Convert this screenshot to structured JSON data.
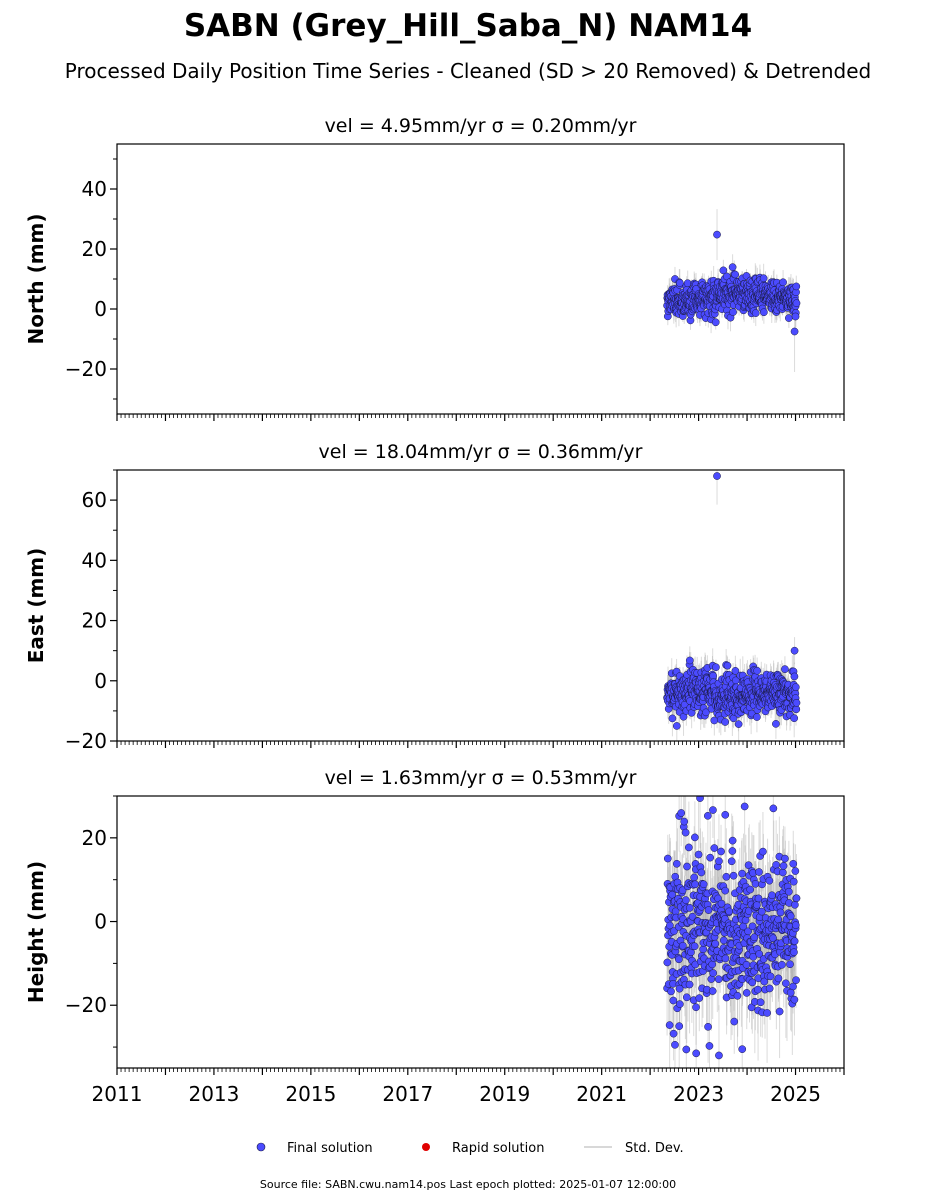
{
  "title": "SABN (Grey_Hill_Saba_N) NAM14",
  "subtitle": "Processed Daily Position Time Series - Cleaned (SD > 20 Removed) & Detrended",
  "footer": "Source file: SABN.cwu.nam14.pos  Last epoch plotted: 2025-01-07 12:00:00",
  "legend": [
    {
      "label": "Final solution",
      "color": "#4b4bff",
      "kind": "dot"
    },
    {
      "label": "Rapid solution",
      "color": "#e00000",
      "kind": "dot"
    },
    {
      "label": "Std. Dev.",
      "color": "#cccccc",
      "kind": "line"
    }
  ],
  "colors": {
    "final": "#4b4bff",
    "final_edge": "#1a1a40",
    "rapid": "#e00000",
    "stddev": "#b0b0b0"
  },
  "chart_data": [
    {
      "type": "scatter",
      "panel_title": "vel = 4.95mm/yr   σ = 0.20mm/yr",
      "ylabel": "North (mm)",
      "xlim": [
        2011.0,
        2026.0
      ],
      "ylim": [
        -35,
        55
      ],
      "yticks": [
        -20,
        0,
        20,
        40
      ],
      "ytick_labels": [
        "−20",
        "0",
        "20",
        "40"
      ],
      "show_xticklabels": false,
      "data_start": 2022.35,
      "data_end": 2025.02,
      "baseline": [
        [
          2022.35,
          3.0
        ],
        [
          2023.0,
          3.5
        ],
        [
          2023.8,
          5.5
        ],
        [
          2024.4,
          4.5
        ],
        [
          2025.02,
          3.0
        ]
      ],
      "noise": 2.8,
      "stddev": 3.5,
      "n_points": 560,
      "outliers": [
        {
          "x": 2023.38,
          "y": 24.8,
          "sd": 8.5
        },
        {
          "x": 2024.98,
          "y": -7.5,
          "sd": 13.5
        },
        {
          "x": 2025.0,
          "y": -2.5,
          "sd": 6.0
        }
      ]
    },
    {
      "type": "scatter",
      "panel_title": "vel = 18.04mm/yr   σ = 0.36mm/yr",
      "ylabel": "East (mm)",
      "xlim": [
        2011.0,
        2026.0
      ],
      "ylim": [
        -20,
        70
      ],
      "yticks": [
        -20,
        0,
        20,
        40,
        60
      ],
      "ytick_labels": [
        "−20",
        "0",
        "20",
        "40",
        "60"
      ],
      "show_xticklabels": false,
      "data_start": 2022.35,
      "data_end": 2025.02,
      "baseline": [
        [
          2022.35,
          -4.0
        ],
        [
          2023.0,
          -3.0
        ],
        [
          2023.8,
          -5.0
        ],
        [
          2024.4,
          -4.0
        ],
        [
          2025.02,
          -4.5
        ]
      ],
      "noise": 3.8,
      "stddev": 4.5,
      "n_points": 560,
      "outliers": [
        {
          "x": 2023.38,
          "y": 68.0,
          "sd": 9.5
        },
        {
          "x": 2024.98,
          "y": 10.0,
          "sd": 4.5
        },
        {
          "x": 2022.55,
          "y": -15.0,
          "sd": 5.0
        }
      ]
    },
    {
      "type": "scatter",
      "panel_title": "vel = 1.63mm/yr   σ = 0.53mm/yr",
      "ylabel": "Height (mm)",
      "xlim": [
        2011.0,
        2026.0
      ],
      "ylim": [
        -35,
        30
      ],
      "yticks": [
        -20,
        0,
        20
      ],
      "ytick_labels": [
        "−20",
        "0",
        "20"
      ],
      "show_xticklabels": true,
      "xticks": [
        2011,
        2013,
        2015,
        2017,
        2019,
        2021,
        2023,
        2025
      ],
      "xtick_labels": [
        "2011",
        "2013",
        "2015",
        "2017",
        "2019",
        "2021",
        "2023",
        "2025"
      ],
      "data_start": 2022.35,
      "data_end": 2025.02,
      "baseline": [
        [
          2022.35,
          -3.0
        ],
        [
          2023.0,
          -1.0
        ],
        [
          2023.8,
          -3.5
        ],
        [
          2024.4,
          -2.0
        ],
        [
          2025.02,
          -2.5
        ]
      ],
      "noise": 9.5,
      "stddev": 9.0,
      "n_points": 560,
      "outliers": [
        {
          "x": 2023.03,
          "y": 29.5,
          "sd": 12.0
        },
        {
          "x": 2023.95,
          "y": 27.5,
          "sd": 11.0
        },
        {
          "x": 2023.55,
          "y": 25.5,
          "sd": 10.0
        },
        {
          "x": 2022.95,
          "y": -31.5,
          "sd": 12.0
        },
        {
          "x": 2023.42,
          "y": -32.0,
          "sd": 12.0
        },
        {
          "x": 2023.9,
          "y": -30.5,
          "sd": 11.0
        },
        {
          "x": 2022.6,
          "y": -25.0,
          "sd": 10.0
        },
        {
          "x": 2024.9,
          "y": -17.0,
          "sd": 9.0
        }
      ]
    }
  ]
}
